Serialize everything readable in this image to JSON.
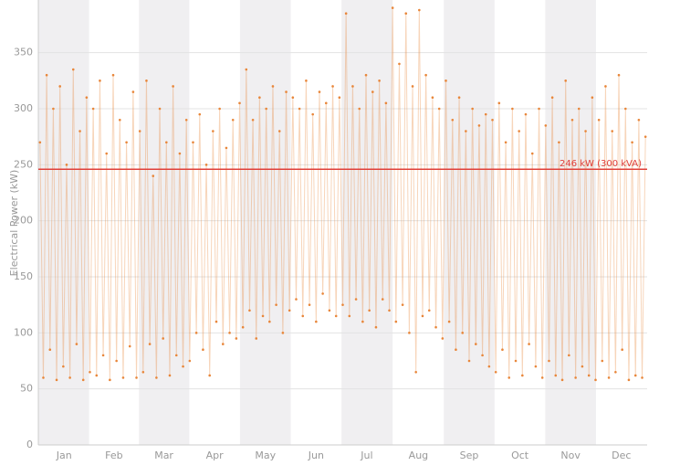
{
  "chart_data": {
    "type": "line",
    "y_label": "Electrical Power (kW)",
    "ylim": [
      0,
      397
    ],
    "yticks": [
      0,
      50,
      100,
      150,
      200,
      250,
      300,
      350
    ],
    "xlim": [
      0,
      366
    ],
    "xticks": [
      {
        "value": 15.5,
        "label": "Jan"
      },
      {
        "value": 45.5,
        "label": "Feb"
      },
      {
        "value": 75.5,
        "label": "Mar"
      },
      {
        "value": 106,
        "label": "Apr"
      },
      {
        "value": 136.5,
        "label": "May"
      },
      {
        "value": 167,
        "label": "Jun"
      },
      {
        "value": 197.5,
        "label": "Jul"
      },
      {
        "value": 228.5,
        "label": "Aug"
      },
      {
        "value": 259,
        "label": "Sep"
      },
      {
        "value": 289.5,
        "label": "Oct"
      },
      {
        "value": 320,
        "label": "Nov"
      },
      {
        "value": 350.5,
        "label": "Dec"
      }
    ],
    "grid": true,
    "threshold": {
      "value": 246,
      "label": "246 kW (300 kVA)",
      "color": "#e0403a"
    },
    "series": [
      {
        "color": "#e8863a",
        "x": [
          1,
          3,
          5,
          7,
          9,
          11,
          13,
          15,
          17,
          19,
          21,
          23,
          25,
          27,
          29,
          31,
          33,
          35,
          37,
          39,
          41,
          43,
          45,
          47,
          49,
          51,
          53,
          55,
          57,
          59,
          61,
          63,
          65,
          67,
          69,
          71,
          73,
          75,
          77,
          79,
          81,
          83,
          85,
          87,
          89,
          91,
          93,
          95,
          97,
          99,
          101,
          103,
          105,
          107,
          109,
          111,
          113,
          115,
          117,
          119,
          121,
          123,
          125,
          127,
          129,
          131,
          133,
          135,
          137,
          139,
          141,
          143,
          145,
          147,
          149,
          151,
          153,
          155,
          157,
          159,
          161,
          163,
          165,
          167,
          169,
          171,
          173,
          175,
          177,
          179,
          181,
          183,
          185,
          187,
          189,
          191,
          193,
          195,
          197,
          199,
          201,
          203,
          205,
          207,
          209,
          211,
          213,
          215,
          217,
          219,
          221,
          223,
          225,
          227,
          229,
          231,
          233,
          235,
          237,
          239,
          241,
          243,
          245,
          247,
          249,
          251,
          253,
          255,
          257,
          259,
          261,
          263,
          265,
          267,
          269,
          271,
          273,
          275,
          277,
          279,
          281,
          283,
          285,
          287,
          289,
          291,
          293,
          295,
          297,
          299,
          301,
          303,
          305,
          307,
          309,
          311,
          313,
          315,
          317,
          319,
          321,
          323,
          325,
          327,
          329,
          331,
          333,
          335,
          337,
          339,
          341,
          343,
          345,
          347,
          349,
          351,
          353,
          355,
          357,
          359,
          361,
          363,
          365
        ],
        "values": [
          270,
          60,
          330,
          85,
          300,
          58,
          320,
          70,
          250,
          60,
          335,
          90,
          280,
          58,
          310,
          65,
          300,
          62,
          325,
          80,
          260,
          58,
          330,
          75,
          290,
          60,
          270,
          88,
          315,
          60,
          280,
          65,
          325,
          90,
          240,
          60,
          300,
          95,
          270,
          62,
          320,
          80,
          260,
          70,
          290,
          75,
          270,
          100,
          295,
          85,
          250,
          62,
          280,
          110,
          300,
          90,
          265,
          100,
          290,
          95,
          305,
          105,
          335,
          120,
          290,
          95,
          310,
          115,
          300,
          110,
          320,
          125,
          280,
          100,
          315,
          120,
          310,
          130,
          300,
          115,
          325,
          125,
          295,
          110,
          315,
          135,
          305,
          120,
          320,
          115,
          310,
          125,
          385,
          115,
          320,
          130,
          300,
          110,
          330,
          120,
          315,
          105,
          325,
          130,
          305,
          120,
          390,
          110,
          340,
          125,
          385,
          100,
          320,
          65,
          388,
          115,
          330,
          120,
          310,
          105,
          300,
          95,
          325,
          110,
          290,
          85,
          310,
          100,
          280,
          75,
          300,
          90,
          285,
          80,
          295,
          70,
          290,
          65,
          305,
          85,
          270,
          60,
          300,
          75,
          280,
          62,
          295,
          90,
          260,
          70,
          300,
          60,
          285,
          75,
          310,
          62,
          270,
          58,
          325,
          80,
          290,
          60,
          300,
          70,
          280,
          62,
          310,
          58,
          290,
          75,
          320,
          60,
          280,
          65,
          330,
          85,
          300,
          58,
          270,
          62,
          290,
          60,
          275
        ]
      }
    ]
  }
}
